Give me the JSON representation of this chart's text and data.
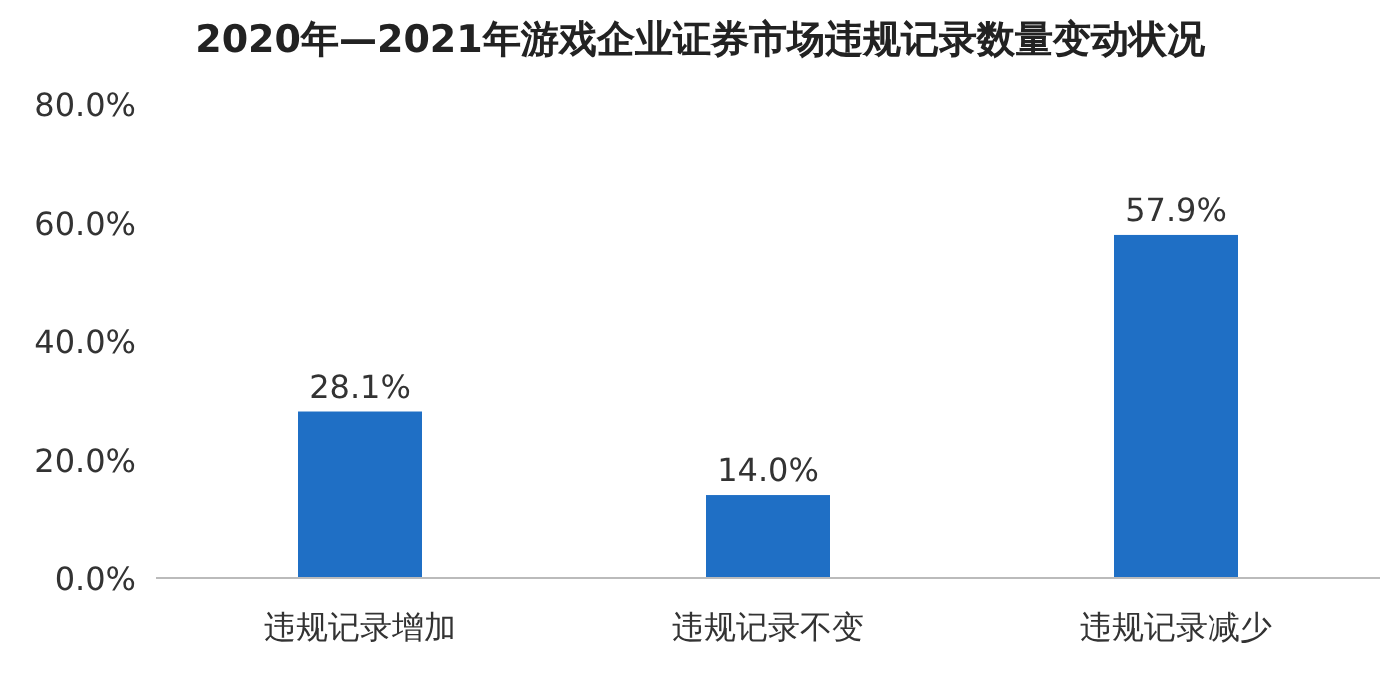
{
  "chart_data": {
    "type": "bar",
    "title": "2020年—2021年游戏企业证券市场违规记录数量变动状况",
    "categories": [
      "违规记录增加",
      "违规记录不变",
      "违规记录减少"
    ],
    "values": [
      28.1,
      14.0,
      57.9
    ],
    "value_labels": [
      "28.1%",
      "14.0%",
      "57.9%"
    ],
    "color": "#1f6fc5",
    "ylim": [
      0,
      80
    ],
    "yticks": [
      {
        "value": 0,
        "label": "0.0%"
      },
      {
        "value": 20,
        "label": "20.0%"
      },
      {
        "value": 40,
        "label": "40.0%"
      },
      {
        "value": 60,
        "label": "60.0%"
      },
      {
        "value": 80,
        "label": "80.0%"
      }
    ]
  }
}
